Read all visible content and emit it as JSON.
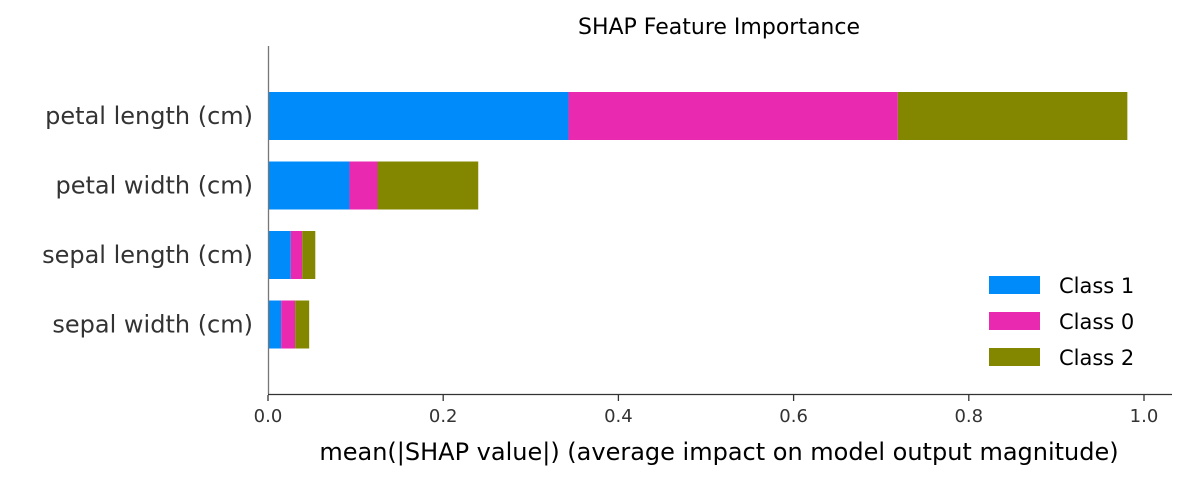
{
  "chart_data": {
    "type": "bar",
    "orientation": "horizontal",
    "stacked": true,
    "title": "SHAP Feature Importance",
    "xlabel": "mean(|SHAP value|) (average impact on model output magnitude)",
    "ylabel": "",
    "xlim": [
      0,
      1.0
    ],
    "xticks": [
      "0.0",
      "0.2",
      "0.4",
      "0.6",
      "0.8",
      "1.0"
    ],
    "categories": [
      "petal length (cm)",
      "petal width (cm)",
      "sepal length (cm)",
      "sepal width (cm)"
    ],
    "series": [
      {
        "name": "Class 1",
        "color": "#008bfb",
        "values": [
          0.343,
          0.093,
          0.026,
          0.015
        ]
      },
      {
        "name": "Class 0",
        "color": "#e92ab0",
        "values": [
          0.376,
          0.032,
          0.013,
          0.016
        ]
      },
      {
        "name": "Class 2",
        "color": "#838700",
        "values": [
          0.262,
          0.115,
          0.015,
          0.016
        ]
      }
    ],
    "legend_position": "bottom-right",
    "grid": false
  }
}
